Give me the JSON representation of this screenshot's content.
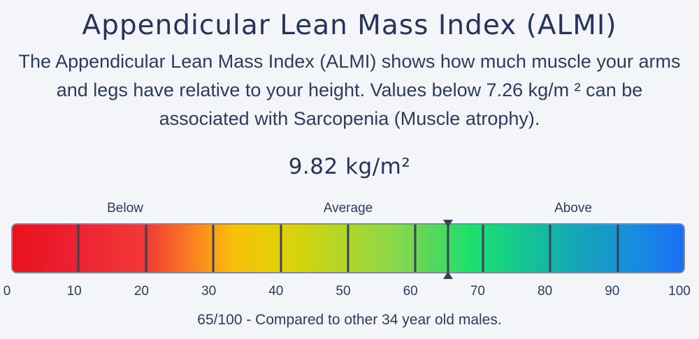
{
  "title": "Appendicular Lean Mass Index (ALMI)",
  "description": "The Appendicular Lean Mass Index (ALMI) shows how much muscle your arms and legs have relative to your height. Values below 7.26 kg/m ² can be associated with Sarcopenia (Muscle atrophy).",
  "value_text": "9.82 kg/m²",
  "bands": [
    "Below",
    "Average",
    "Above"
  ],
  "scale": {
    "min": 0,
    "max": 100,
    "ticks": [
      "0",
      "10",
      "20",
      "30",
      "40",
      "50",
      "60",
      "70",
      "80",
      "90",
      "100"
    ]
  },
  "percentile": 65,
  "comparison_text": "65/100 - Compared to other 34 year old males."
}
